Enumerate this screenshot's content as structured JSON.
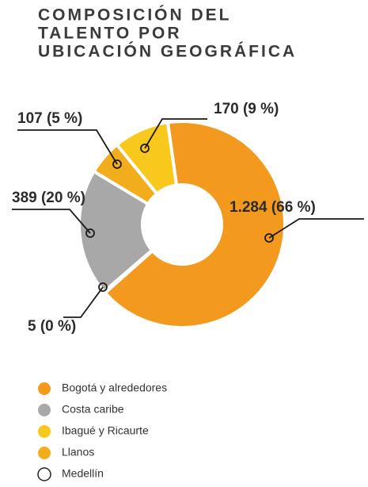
{
  "chart_data": {
    "type": "donut",
    "title": [
      "COMPOSICIÓN DEL",
      "TALENTO POR",
      "UBICACIÓN GEOGRÁFICA"
    ],
    "categories": [
      "Bogotá y alrededores",
      "Medellín",
      "Costa caribe",
      "Llanos",
      "Ibagué y Ricaurte"
    ],
    "values": [
      1284,
      5,
      389,
      107,
      170
    ],
    "value_labels": [
      "1.284 (66 %)",
      "5 (0 %)",
      "389 (20 %)",
      "107 (5 %)",
      "170 (9 %)"
    ],
    "colors": [
      "#f39a1e",
      "#ffffff",
      "#a8a8a8",
      "#f2ad1c",
      "#f8c81c"
    ],
    "legend_order": [
      0,
      2,
      4,
      3,
      1
    ]
  }
}
